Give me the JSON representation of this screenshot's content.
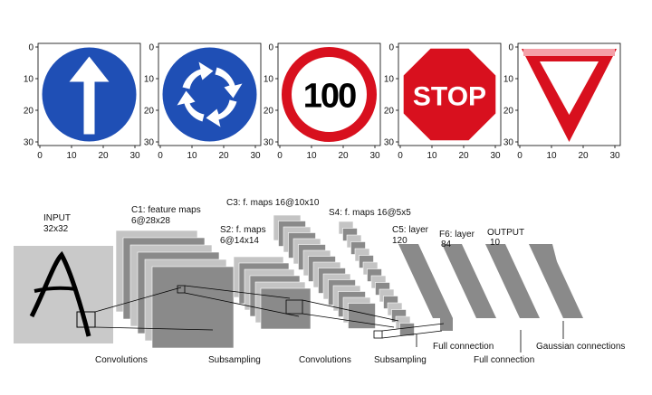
{
  "plots": [
    {
      "xticks": [
        0,
        10,
        20,
        30
      ],
      "yticks": [
        0,
        10,
        20,
        30
      ]
    },
    {
      "xticks": [
        0,
        10,
        20,
        30
      ],
      "yticks": [
        0,
        10,
        20,
        30
      ]
    },
    {
      "xticks": [
        0,
        10,
        20,
        30
      ],
      "yticks": [
        0,
        10,
        20,
        30
      ],
      "sign_text": "100"
    },
    {
      "xticks": [
        0,
        10,
        20,
        30
      ],
      "yticks": [
        0,
        10,
        20,
        30
      ],
      "sign_text": "STOP"
    },
    {
      "xticks": [
        0,
        10,
        20,
        30
      ],
      "yticks": [
        0,
        10,
        20,
        30
      ]
    }
  ],
  "diagram": {
    "layers": [
      {
        "name": "INPUT",
        "size": "32x32"
      },
      {
        "name": "C1: feature maps",
        "size": "6@28x28"
      },
      {
        "name": "S2: f. maps",
        "size": "6@14x14"
      },
      {
        "name": "C3: f. maps 16@10x10"
      },
      {
        "name": "S4: f. maps 16@5x5"
      },
      {
        "name": "C5: layer",
        "size": "120"
      },
      {
        "name": "F6: layer",
        "size": "84"
      },
      {
        "name": "OUTPUT",
        "size": "10"
      }
    ],
    "operations": [
      "Convolutions",
      "Subsampling",
      "Convolutions",
      "Subsampling",
      "Full connection",
      "Full connection",
      "Gaussian connections"
    ]
  }
}
